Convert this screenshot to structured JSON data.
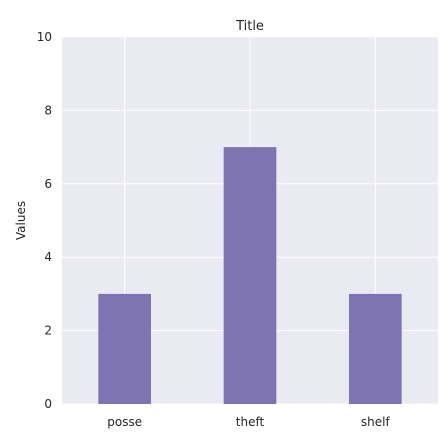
{
  "chart_data": {
    "type": "bar",
    "title": "Title",
    "xlabel": "",
    "ylabel": "Values",
    "categories": [
      "posse",
      "theft",
      "shelf"
    ],
    "values": [
      3,
      7,
      3
    ],
    "ylim": [
      0,
      10
    ],
    "yticks": [
      0,
      2,
      4,
      6,
      8,
      10
    ],
    "grid": true,
    "colors": {
      "bar": "#7f74b3",
      "plot_background": "#eaeaf2",
      "grid": "#ffffff"
    }
  }
}
